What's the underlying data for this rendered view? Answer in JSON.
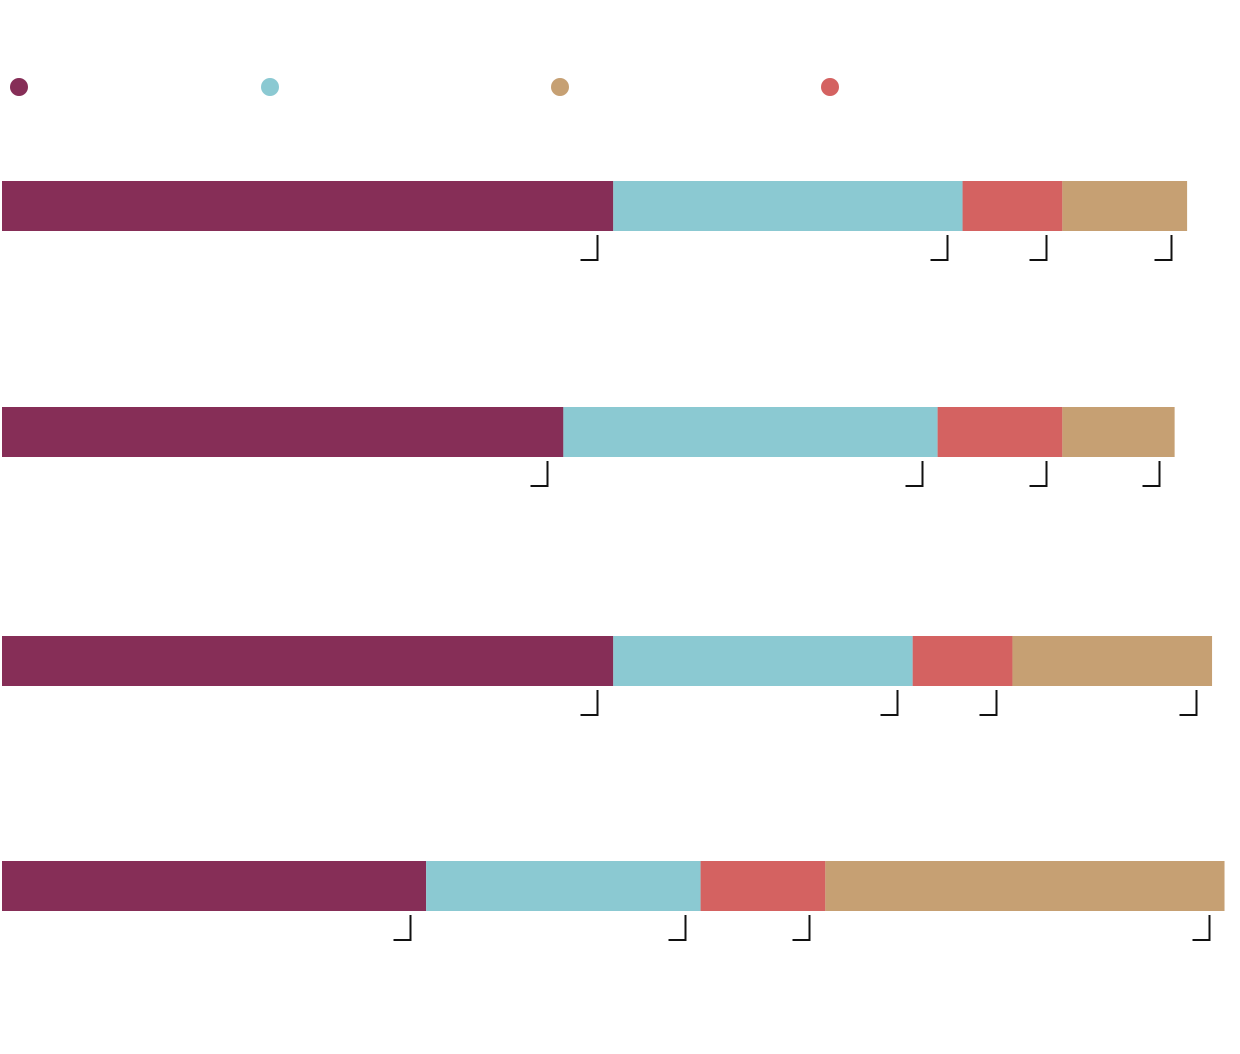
{
  "chart_data": {
    "type": "bar",
    "orientation": "horizontal",
    "stacked": true,
    "title": "",
    "xlabel": "",
    "ylabel": "",
    "grid": false,
    "legend_placement": "top",
    "legend_order": [
      "series_1",
      "series_2",
      "series_4",
      "series_3"
    ],
    "categories": [
      "",
      "",
      "",
      ""
    ],
    "series": [
      {
        "key": "series_1",
        "color": "#862e57",
        "values": [
          49,
          45,
          49,
          34
        ]
      },
      {
        "key": "series_2",
        "color": "#8bc9d2",
        "values": [
          28,
          30,
          24,
          22
        ]
      },
      {
        "key": "series_3",
        "color": "#d46261",
        "values": [
          8,
          10,
          8,
          10
        ]
      },
      {
        "key": "series_4",
        "color": "#c6a073",
        "values": [
          10,
          9,
          16,
          32
        ]
      }
    ],
    "xlim": [
      0,
      99
    ]
  }
}
